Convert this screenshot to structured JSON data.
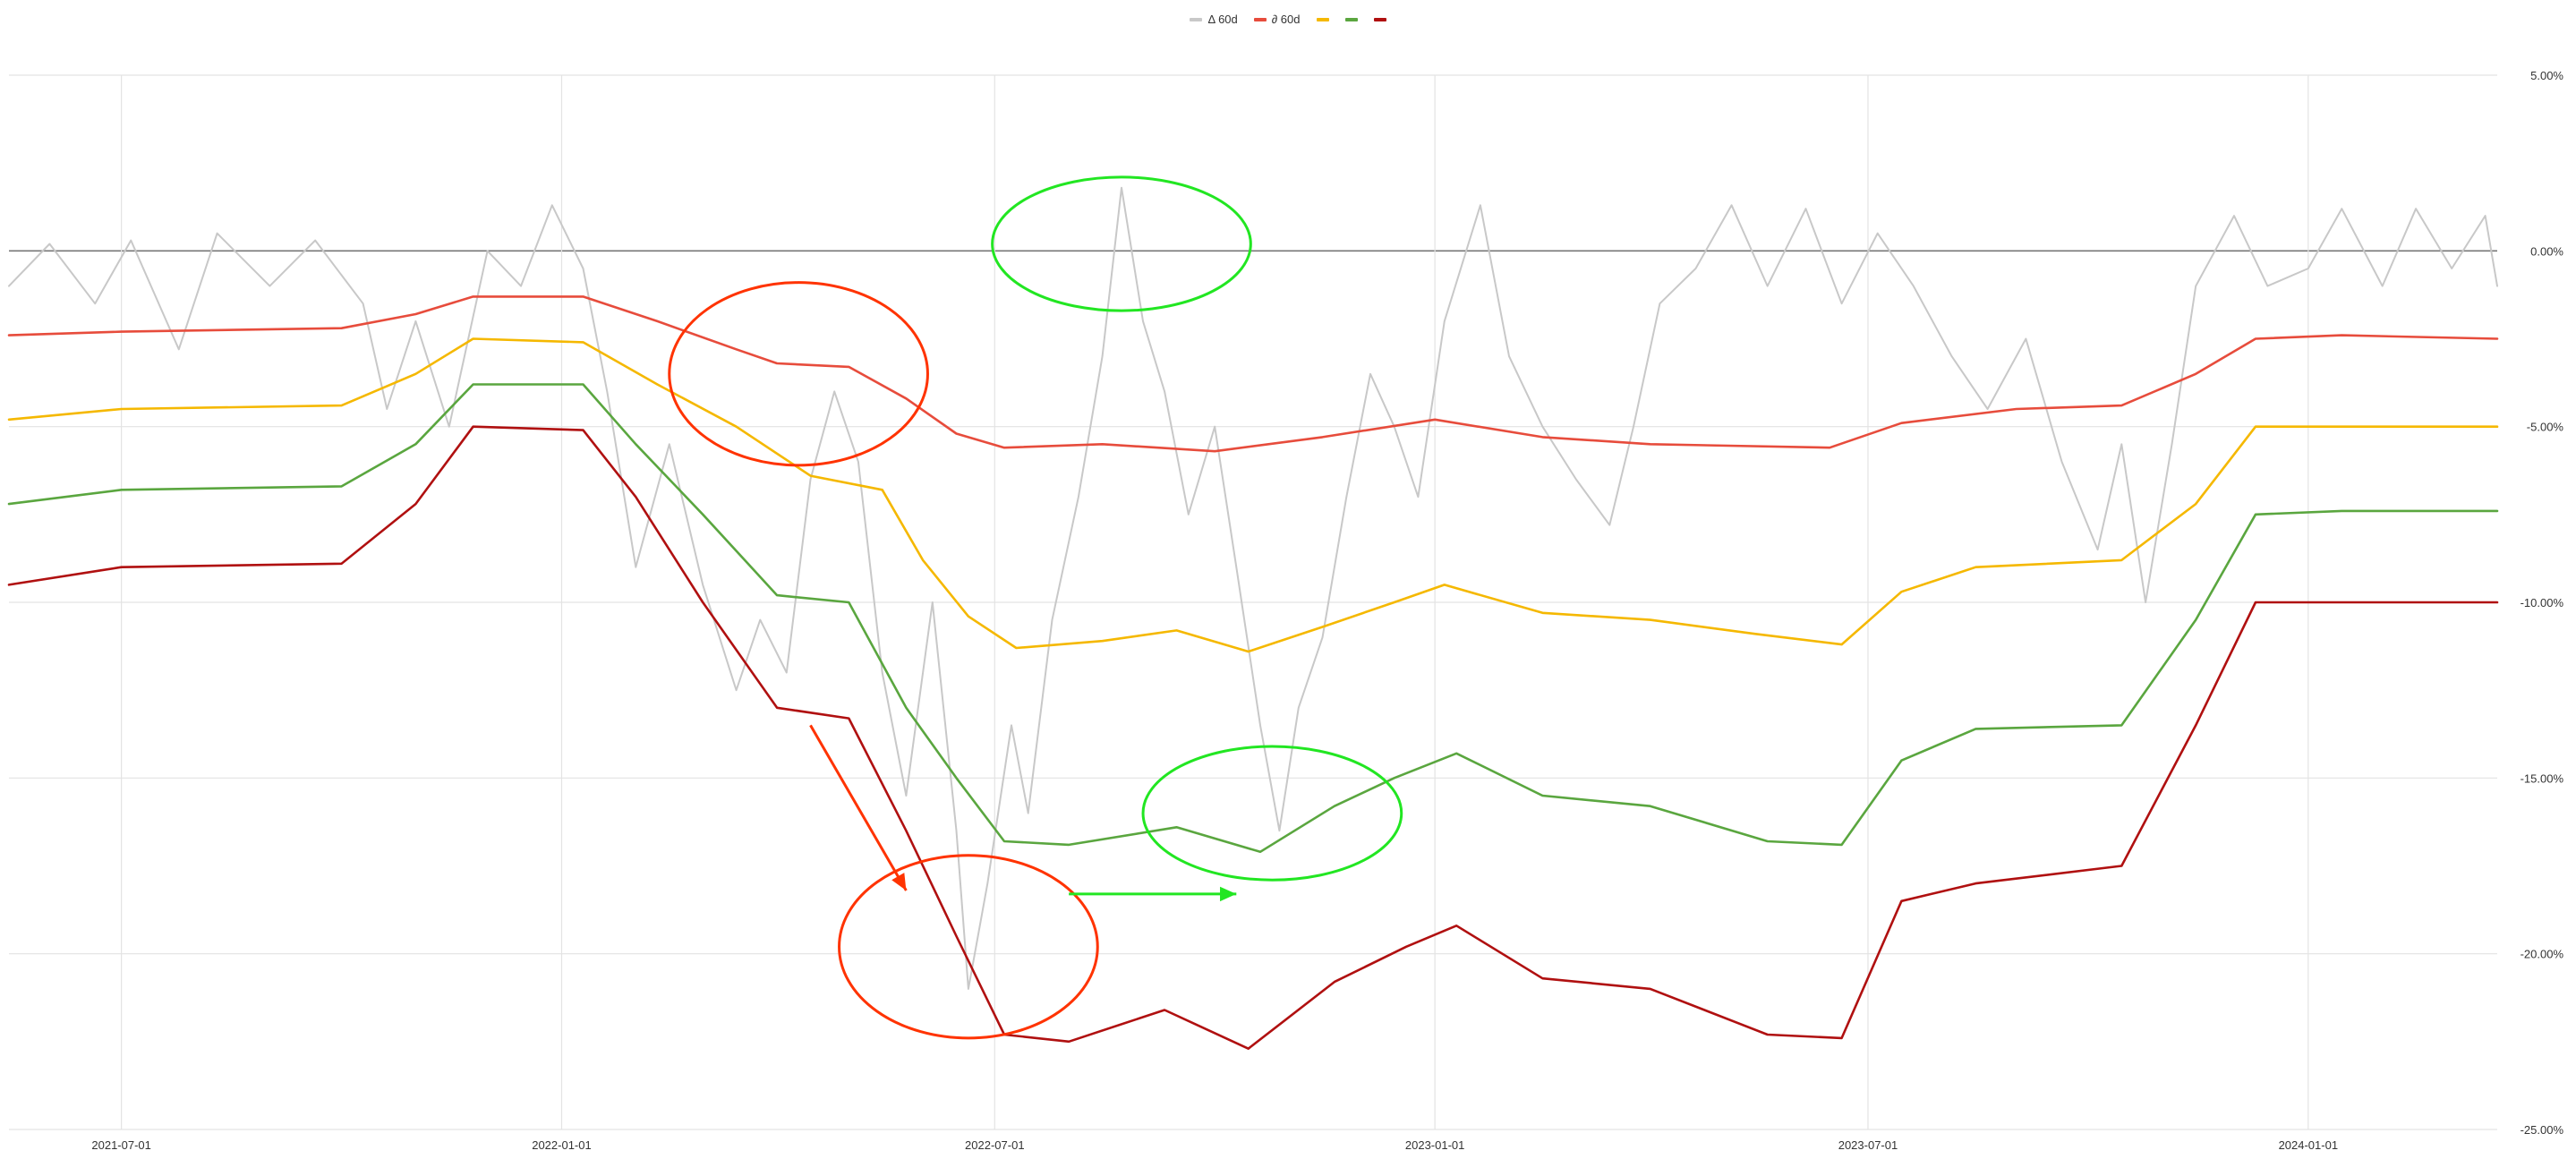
{
  "chart_data": {
    "type": "line",
    "title": "",
    "legend": {
      "position": "top-center",
      "entries": [
        {
          "label": "Δ 60d",
          "color": "#c8c8c8"
        },
        {
          "label": "∂ 60d",
          "color": "#e74c3c"
        },
        {
          "label": "",
          "color": "#f5b800"
        },
        {
          "label": "",
          "color": "#5aa63f"
        },
        {
          "label": "",
          "color": "#b01010"
        }
      ]
    },
    "x_axis": {
      "range": [
        "2021-05-15",
        "2024-03-20"
      ],
      "ticks": [
        "2021-07-01",
        "2022-01-01",
        "2022-07-01",
        "2023-01-01",
        "2023-07-01",
        "2024-01-01"
      ]
    },
    "y_axis": {
      "position": "right",
      "range": [
        -25,
        5
      ],
      "ticks": [
        "5.00%",
        "0.00%",
        "-5.00%",
        "-10.00%",
        "-15.00%",
        "-20.00%",
        "-25.00%"
      ],
      "tick_values": [
        5,
        0,
        -5,
        -10,
        -15,
        -20,
        -25
      ],
      "grid": true,
      "zero_line": true
    },
    "series": [
      {
        "name": "Δ 60d",
        "color": "#c8c8c8",
        "points": [
          [
            "2021-05-15",
            -1.0
          ],
          [
            "2021-06-01",
            0.2
          ],
          [
            "2021-06-20",
            -1.5
          ],
          [
            "2021-07-05",
            0.3
          ],
          [
            "2021-07-25",
            -2.8
          ],
          [
            "2021-08-10",
            0.5
          ],
          [
            "2021-09-01",
            -1.0
          ],
          [
            "2021-09-20",
            0.3
          ],
          [
            "2021-10-10",
            -1.5
          ],
          [
            "2021-10-20",
            -4.5
          ],
          [
            "2021-11-01",
            -2.0
          ],
          [
            "2021-11-15",
            -5.0
          ],
          [
            "2021-12-01",
            0.0
          ],
          [
            "2021-12-15",
            -1.0
          ],
          [
            "2021-12-28",
            1.3
          ],
          [
            "2022-01-10",
            -0.5
          ],
          [
            "2022-01-20",
            -4.0
          ],
          [
            "2022-02-01",
            -9.0
          ],
          [
            "2022-02-15",
            -5.5
          ],
          [
            "2022-03-01",
            -9.5
          ],
          [
            "2022-03-15",
            -12.5
          ],
          [
            "2022-03-25",
            -10.5
          ],
          [
            "2022-04-05",
            -12.0
          ],
          [
            "2022-04-15",
            -6.5
          ],
          [
            "2022-04-25",
            -4.0
          ],
          [
            "2022-05-05",
            -6.0
          ],
          [
            "2022-05-15",
            -12.0
          ],
          [
            "2022-05-25",
            -15.5
          ],
          [
            "2022-06-05",
            -10.0
          ],
          [
            "2022-06-15",
            -16.5
          ],
          [
            "2022-06-20",
            -21.0
          ],
          [
            "2022-06-28",
            -18.0
          ],
          [
            "2022-07-08",
            -13.5
          ],
          [
            "2022-07-15",
            -16.0
          ],
          [
            "2022-07-25",
            -10.5
          ],
          [
            "2022-08-05",
            -7.0
          ],
          [
            "2022-08-15",
            -3.0
          ],
          [
            "2022-08-23",
            1.8
          ],
          [
            "2022-09-01",
            -2.0
          ],
          [
            "2022-09-10",
            -4.0
          ],
          [
            "2022-09-20",
            -7.5
          ],
          [
            "2022-10-01",
            -5.0
          ],
          [
            "2022-10-10",
            -9.0
          ],
          [
            "2022-10-20",
            -13.5
          ],
          [
            "2022-10-28",
            -16.5
          ],
          [
            "2022-11-05",
            -13.0
          ],
          [
            "2022-11-15",
            -11.0
          ],
          [
            "2022-11-25",
            -7.0
          ],
          [
            "2022-12-05",
            -3.5
          ],
          [
            "2022-12-15",
            -5.0
          ],
          [
            "2022-12-25",
            -7.0
          ],
          [
            "2023-01-05",
            -2.0
          ],
          [
            "2023-01-20",
            1.3
          ],
          [
            "2023-02-01",
            -3.0
          ],
          [
            "2023-02-15",
            -5.0
          ],
          [
            "2023-03-01",
            -6.5
          ],
          [
            "2023-03-15",
            -7.8
          ],
          [
            "2023-03-25",
            -5.0
          ],
          [
            "2023-04-05",
            -1.5
          ],
          [
            "2023-04-20",
            -0.5
          ],
          [
            "2023-05-05",
            1.3
          ],
          [
            "2023-05-20",
            -1.0
          ],
          [
            "2023-06-05",
            1.2
          ],
          [
            "2023-06-20",
            -1.5
          ],
          [
            "2023-07-05",
            0.5
          ],
          [
            "2023-07-20",
            -1.0
          ],
          [
            "2023-08-05",
            -3.0
          ],
          [
            "2023-08-20",
            -4.5
          ],
          [
            "2023-09-05",
            -2.5
          ],
          [
            "2023-09-20",
            -6.0
          ],
          [
            "2023-10-05",
            -8.5
          ],
          [
            "2023-10-15",
            -5.5
          ],
          [
            "2023-10-25",
            -10.0
          ],
          [
            "2023-11-05",
            -5.5
          ],
          [
            "2023-11-15",
            -1.0
          ],
          [
            "2023-12-01",
            1.0
          ],
          [
            "2023-12-15",
            -1.0
          ],
          [
            "2024-01-01",
            -0.5
          ],
          [
            "2024-01-15",
            1.2
          ],
          [
            "2024-02-01",
            -1.0
          ],
          [
            "2024-02-15",
            1.2
          ],
          [
            "2024-03-01",
            -0.5
          ],
          [
            "2024-03-15",
            1.0
          ],
          [
            "2024-03-20",
            -1.0
          ]
        ]
      },
      {
        "name": "∂ 60d",
        "color": "#e74c3c",
        "points": [
          [
            "2021-05-15",
            -2.4
          ],
          [
            "2021-07-01",
            -2.3
          ],
          [
            "2021-10-01",
            -2.2
          ],
          [
            "2021-11-01",
            -1.8
          ],
          [
            "2021-11-25",
            -1.3
          ],
          [
            "2022-01-10",
            -1.3
          ],
          [
            "2022-02-10",
            -2.0
          ],
          [
            "2022-03-15",
            -2.8
          ],
          [
            "2022-04-01",
            -3.2
          ],
          [
            "2022-05-01",
            -3.3
          ],
          [
            "2022-05-25",
            -4.2
          ],
          [
            "2022-06-15",
            -5.2
          ],
          [
            "2022-07-05",
            -5.6
          ],
          [
            "2022-08-15",
            -5.5
          ],
          [
            "2022-10-01",
            -5.7
          ],
          [
            "2022-11-15",
            -5.3
          ],
          [
            "2023-01-01",
            -4.8
          ],
          [
            "2023-02-15",
            -5.3
          ],
          [
            "2023-04-01",
            -5.5
          ],
          [
            "2023-06-15",
            -5.6
          ],
          [
            "2023-07-15",
            -4.9
          ],
          [
            "2023-09-01",
            -4.5
          ],
          [
            "2023-10-15",
            -4.4
          ],
          [
            "2023-11-15",
            -3.5
          ],
          [
            "2023-12-10",
            -2.5
          ],
          [
            "2024-01-15",
            -2.4
          ],
          [
            "2024-03-20",
            -2.5
          ]
        ]
      },
      {
        "name": "",
        "color": "#f5b800",
        "points": [
          [
            "2021-05-15",
            -4.8
          ],
          [
            "2021-07-01",
            -4.5
          ],
          [
            "2021-10-01",
            -4.4
          ],
          [
            "2021-11-01",
            -3.5
          ],
          [
            "2021-11-25",
            -2.5
          ],
          [
            "2022-01-10",
            -2.6
          ],
          [
            "2022-02-10",
            -3.8
          ],
          [
            "2022-03-15",
            -5.0
          ],
          [
            "2022-04-15",
            -6.4
          ],
          [
            "2022-05-15",
            -6.8
          ],
          [
            "2022-06-01",
            -8.8
          ],
          [
            "2022-06-20",
            -10.4
          ],
          [
            "2022-07-10",
            -11.3
          ],
          [
            "2022-08-15",
            -11.1
          ],
          [
            "2022-09-15",
            -10.8
          ],
          [
            "2022-10-15",
            -11.4
          ],
          [
            "2022-11-15",
            -10.7
          ],
          [
            "2022-12-15",
            -10.0
          ],
          [
            "2023-01-05",
            -9.5
          ],
          [
            "2023-02-15",
            -10.3
          ],
          [
            "2023-04-01",
            -10.5
          ],
          [
            "2023-05-15",
            -10.9
          ],
          [
            "2023-06-20",
            -11.2
          ],
          [
            "2023-07-15",
            -9.7
          ],
          [
            "2023-08-15",
            -9.0
          ],
          [
            "2023-10-15",
            -8.8
          ],
          [
            "2023-11-15",
            -7.2
          ],
          [
            "2023-12-10",
            -5.0
          ],
          [
            "2024-01-15",
            -5.0
          ],
          [
            "2024-03-20",
            -5.0
          ]
        ]
      },
      {
        "name": "",
        "color": "#5aa63f",
        "points": [
          [
            "2021-05-15",
            -7.2
          ],
          [
            "2021-07-01",
            -6.8
          ],
          [
            "2021-10-01",
            -6.7
          ],
          [
            "2021-11-01",
            -5.5
          ],
          [
            "2021-11-25",
            -3.8
          ],
          [
            "2022-01-10",
            -3.8
          ],
          [
            "2022-02-01",
            -5.5
          ],
          [
            "2022-03-01",
            -7.5
          ],
          [
            "2022-04-01",
            -9.8
          ],
          [
            "2022-05-01",
            -10.0
          ],
          [
            "2022-05-25",
            -13.0
          ],
          [
            "2022-06-15",
            -15.0
          ],
          [
            "2022-07-05",
            -16.8
          ],
          [
            "2022-08-01",
            -16.9
          ],
          [
            "2022-09-15",
            -16.4
          ],
          [
            "2022-10-20",
            -17.1
          ],
          [
            "2022-11-20",
            -15.8
          ],
          [
            "2022-12-15",
            -15.0
          ],
          [
            "2023-01-10",
            -14.3
          ],
          [
            "2023-02-15",
            -15.5
          ],
          [
            "2023-04-01",
            -15.8
          ],
          [
            "2023-05-20",
            -16.8
          ],
          [
            "2023-06-20",
            -16.9
          ],
          [
            "2023-07-15",
            -14.5
          ],
          [
            "2023-08-15",
            -13.6
          ],
          [
            "2023-10-15",
            -13.5
          ],
          [
            "2023-11-15",
            -10.5
          ],
          [
            "2023-12-10",
            -7.5
          ],
          [
            "2024-01-15",
            -7.4
          ],
          [
            "2024-03-20",
            -7.4
          ]
        ]
      },
      {
        "name": "",
        "color": "#b01010",
        "points": [
          [
            "2021-05-15",
            -9.5
          ],
          [
            "2021-07-01",
            -9.0
          ],
          [
            "2021-10-01",
            -8.9
          ],
          [
            "2021-11-01",
            -7.2
          ],
          [
            "2021-11-25",
            -5.0
          ],
          [
            "2022-01-10",
            -5.1
          ],
          [
            "2022-02-01",
            -7.0
          ],
          [
            "2022-03-01",
            -10.0
          ],
          [
            "2022-04-01",
            -13.0
          ],
          [
            "2022-05-01",
            -13.3
          ],
          [
            "2022-05-25",
            -16.5
          ],
          [
            "2022-06-15",
            -19.5
          ],
          [
            "2022-07-05",
            -22.3
          ],
          [
            "2022-08-01",
            -22.5
          ],
          [
            "2022-09-10",
            -21.6
          ],
          [
            "2022-10-15",
            -22.7
          ],
          [
            "2022-11-20",
            -20.8
          ],
          [
            "2022-12-20",
            -19.8
          ],
          [
            "2023-01-10",
            -19.2
          ],
          [
            "2023-02-15",
            -20.7
          ],
          [
            "2023-04-01",
            -21.0
          ],
          [
            "2023-05-20",
            -22.3
          ],
          [
            "2023-06-20",
            -22.4
          ],
          [
            "2023-07-15",
            -18.5
          ],
          [
            "2023-08-15",
            -18.0
          ],
          [
            "2023-10-15",
            -17.5
          ],
          [
            "2023-11-15",
            -13.5
          ],
          [
            "2023-12-10",
            -10.0
          ],
          [
            "2024-01-15",
            -10.0
          ],
          [
            "2024-03-20",
            -10.0
          ]
        ]
      }
    ],
    "annotations": {
      "circles": [
        {
          "color": "#ff3300",
          "cx": "2022-04-10",
          "cy": -3.5,
          "rx_days": 54,
          "ry": 2.6
        },
        {
          "color": "#ff3300",
          "cx": "2022-06-20",
          "cy": -19.8,
          "rx_days": 54,
          "ry": 2.6
        },
        {
          "color": "#22e622",
          "cx": "2022-08-23",
          "cy": 0.2,
          "rx_days": 54,
          "ry": 1.9
        },
        {
          "color": "#22e622",
          "cx": "2022-10-25",
          "cy": -16.0,
          "rx_days": 54,
          "ry": 1.9
        }
      ],
      "arrows": [
        {
          "color": "#ff3300",
          "from": [
            "2022-04-15",
            -13.5
          ],
          "to": [
            "2022-05-25",
            -18.2
          ]
        },
        {
          "color": "#22e622",
          "from": [
            "2022-08-01",
            -18.3
          ],
          "to": [
            "2022-10-10",
            -18.3
          ]
        }
      ]
    }
  }
}
